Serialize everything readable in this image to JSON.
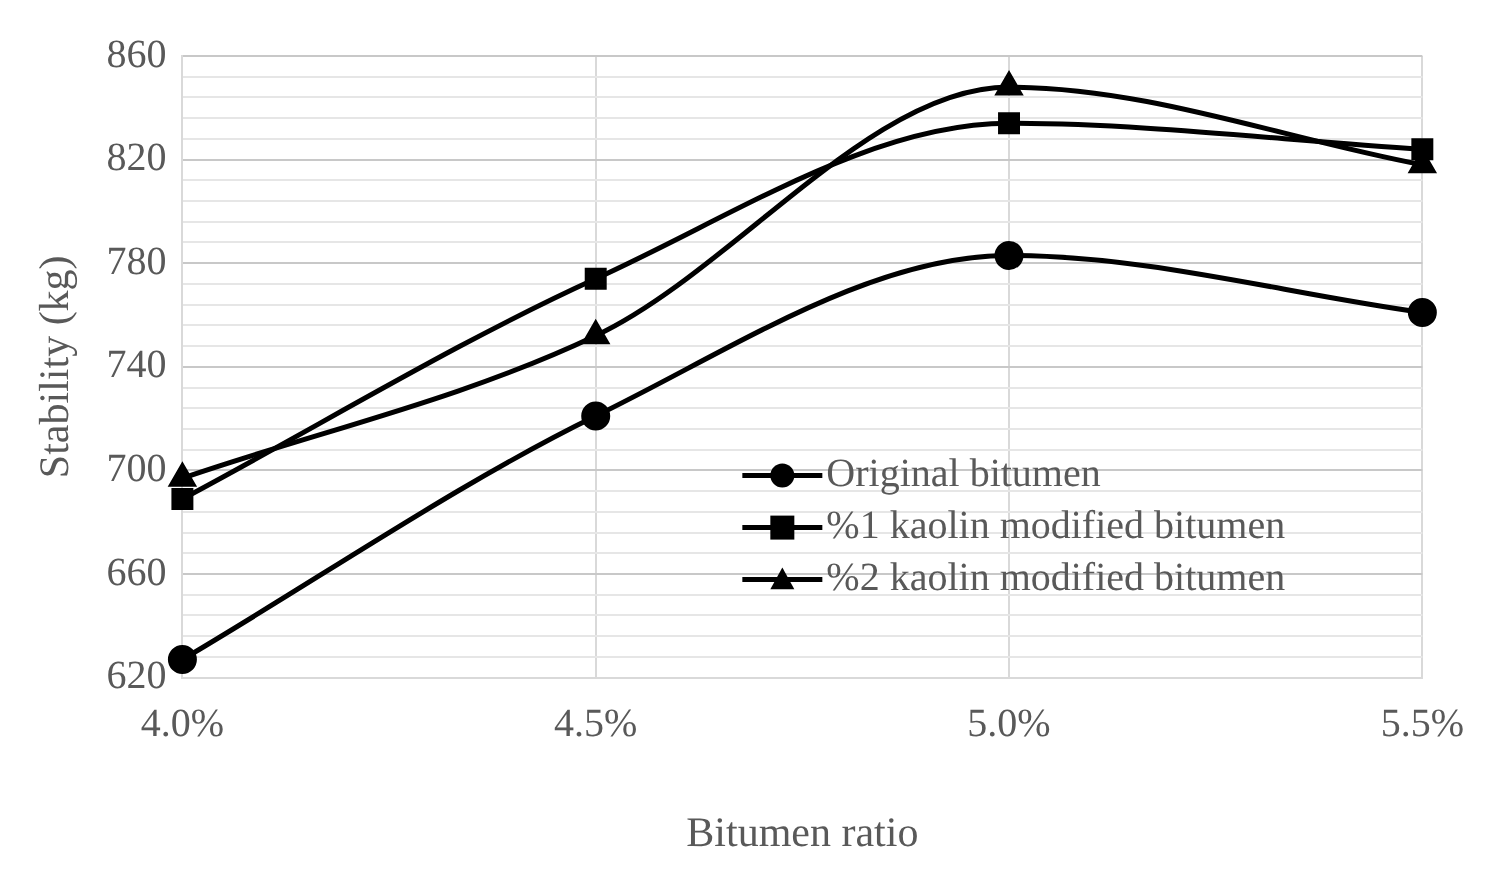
{
  "chart_data": {
    "type": "line",
    "xlabel": "Bitumen ratio",
    "ylabel": "Stability (kg)",
    "categories": [
      "4.0%",
      "4.5%",
      "5.0%",
      "5.5%"
    ],
    "series": [
      {
        "name": "Original bitumen",
        "color": "#000000",
        "marker": "circle",
        "values": [
          627,
          721,
          783,
          761
        ]
      },
      {
        "name": "%1 kaolin modified bitumen",
        "color": "#000000",
        "marker": "square",
        "values": [
          689,
          774,
          834,
          824
        ]
      },
      {
        "name": "%2 kaolin modified bitumen",
        "color": "#000000",
        "marker": "triangle",
        "values": [
          697,
          752,
          848,
          818
        ]
      }
    ],
    "ylim": [
      620,
      860
    ],
    "yticks": [
      620,
      {
        "value": 628,
        "label": null
      },
      {
        "value": 636,
        "label": null
      },
      {
        "value": 644,
        "label": null
      },
      {
        "value": 652,
        "label": null
      },
      660,
      {
        "value": 668,
        "label": null
      },
      {
        "value": 676,
        "label": null
      },
      {
        "value": 684,
        "label": null
      },
      {
        "value": 692,
        "label": null
      },
      700,
      {
        "value": 708,
        "label": null
      },
      {
        "value": 716,
        "label": null
      },
      {
        "value": 724,
        "label": null
      },
      {
        "value": 732,
        "label": null
      },
      740,
      {
        "value": 748,
        "label": null
      },
      {
        "value": 756,
        "label": null
      },
      {
        "value": 764,
        "label": null
      },
      {
        "value": 772,
        "label": null
      },
      780,
      {
        "value": 788,
        "label": null
      },
      {
        "value": 796,
        "label": null
      },
      {
        "value": 804,
        "label": null
      },
      {
        "value": 812,
        "label": null
      },
      820,
      {
        "value": 828,
        "label": null
      },
      {
        "value": 836,
        "label": null
      },
      {
        "value": 844,
        "label": null
      },
      {
        "value": 852,
        "label": null
      },
      860
    ],
    "grid": true,
    "legend": "bottom right",
    "line_style": "solid"
  }
}
